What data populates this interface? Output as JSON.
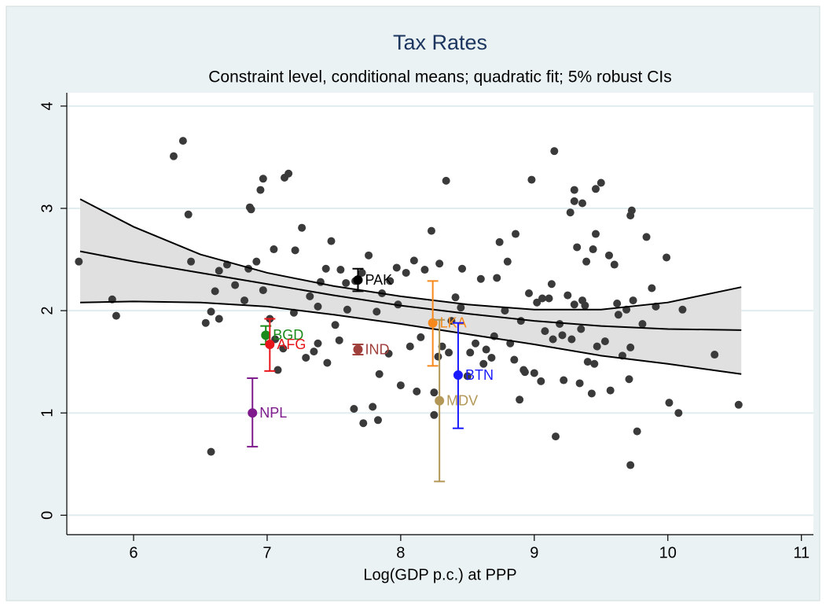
{
  "chart_data": {
    "type": "scatter",
    "title": "Tax Rates",
    "subtitle": "Constraint level, conditional means; quadratic fit; 5% robust CIs",
    "x_label": "Log(GDP p.c.) at PPP",
    "xlim": [
      5.5,
      11.09
    ],
    "ylim": [
      -0.19,
      4.13
    ],
    "xticks": [
      6,
      7,
      8,
      9,
      10,
      11
    ],
    "yticks": [
      0,
      1,
      2,
      3,
      4
    ],
    "grid": true,
    "points": {
      "color": "#3a3a3a",
      "x": [
        5.59,
        5.84,
        5.87,
        6.3,
        6.37,
        6.41,
        6.43,
        6.54,
        6.58,
        6.58,
        6.61,
        6.64,
        6.64,
        6.7,
        6.76,
        6.83,
        6.86,
        6.88,
        6.87,
        6.92,
        6.95,
        6.97,
        6.97,
        7.02,
        7.05,
        7.06,
        7.08,
        7.13,
        7.16,
        7.21,
        7.26,
        7.29,
        7.32,
        7.38,
        7.38,
        7.44,
        7.48,
        7.51,
        7.54,
        7.59,
        7.65,
        7.71,
        7.72,
        7.76,
        7.82,
        7.84,
        7.86,
        7.91,
        7.97,
        8.0,
        8.04,
        8.07,
        8.12,
        8.18,
        8.23,
        8.25,
        8.25,
        8.29,
        8.34,
        8.36,
        8.41,
        8.46,
        8.52,
        8.56,
        8.62,
        8.68,
        8.72,
        8.74,
        8.8,
        8.82,
        8.86,
        8.89,
        8.93,
        8.98,
        9.02,
        9.06,
        9.11,
        9.15,
        9.16,
        9.19,
        9.22,
        9.25,
        9.27,
        9.3,
        9.32,
        9.36,
        9.38,
        9.39,
        9.43,
        9.44,
        9.46,
        9.5,
        9.56,
        9.6,
        9.63,
        9.66,
        9.69,
        9.71,
        9.77,
        9.72,
        9.81,
        9.84,
        9.88,
        9.91,
        9.99,
        10.01,
        10.08,
        10.11,
        10.35,
        10.53,
        8.1,
        8.15,
        8.5,
        8.6,
        8.7,
        8.78,
        8.85,
        8.9,
        9.0,
        9.08,
        9.13,
        9.21,
        9.28,
        9.34,
        9.4,
        9.47,
        9.53,
        9.57,
        9.62,
        9.72,
        9.74,
        7.4,
        7.55,
        7.66,
        7.92,
        7.98,
        8.28,
        8.38,
        8.45,
        8.64,
        8.92,
        8.96,
        7.12,
        7.2,
        7.45,
        7.35,
        7.6,
        7.79,
        7.83,
        8.31,
        9.05,
        9.14,
        9.45,
        9.35,
        9.3,
        9.73,
        9.72,
        9.46,
        9.3,
        9.36
      ],
      "y": [
        2.48,
        2.11,
        1.95,
        3.51,
        3.66,
        2.94,
        2.48,
        1.88,
        0.62,
        1.99,
        2.19,
        1.92,
        2.39,
        2.45,
        2.25,
        2.1,
        2.41,
        2.99,
        3.01,
        2.48,
        3.18,
        3.29,
        2.2,
        1.92,
        2.6,
        1.72,
        1.42,
        3.3,
        3.34,
        2.59,
        2.81,
        1.54,
        2.14,
        2.04,
        1.68,
        2.41,
        2.68,
        1.86,
        1.71,
        2.27,
        1.04,
        2.37,
        0.9,
        2.54,
        1.99,
        1.38,
        2.17,
        1.58,
        2.42,
        1.27,
        2.37,
        1.65,
        1.21,
        2.4,
        2.78,
        0.98,
        1.2,
        2.46,
        3.27,
        1.59,
        2.13,
        2.41,
        1.59,
        1.68,
        1.48,
        1.54,
        2.32,
        2.67,
        2.48,
        1.68,
        2.75,
        1.13,
        1.4,
        3.28,
        2.08,
        2.12,
        2.12,
        3.56,
        0.77,
        1.87,
        1.32,
        2.15,
        2.96,
        2.06,
        2.62,
        2.1,
        2.05,
        2.48,
        1.19,
        2.6,
        2.75,
        3.25,
        2.54,
        2.45,
        1.96,
        1.56,
        2.01,
        1.33,
        0.82,
        0.49,
        1.87,
        2.72,
        2.22,
        2.04,
        2.52,
        1.1,
        1.0,
        2.01,
        1.57,
        1.08,
        2.49,
        1.74,
        1.36,
        2.31,
        1.75,
        2.0,
        1.52,
        1.9,
        1.39,
        1.8,
        2.26,
        1.76,
        1.72,
        1.29,
        1.5,
        1.65,
        1.7,
        1.22,
        2.07,
        1.64,
        2.1,
        2.28,
        2.4,
        2.29,
        2.29,
        2.06,
        1.55,
        1.9,
        2.03,
        1.62,
        1.42,
        2.17,
        1.63,
        1.98,
        1.49,
        1.6,
        2.01,
        1.06,
        0.93,
        1.65,
        1.31,
        1.72,
        1.48,
        1.82,
        3.07,
        2.98,
        2.93,
        3.19,
        3.18,
        3.05
      ]
    },
    "fit": {
      "color": "#000000",
      "band_color": "#e0e0e0",
      "x": [
        5.6,
        6,
        6.5,
        7,
        7.5,
        8,
        8.5,
        9,
        9.5,
        10,
        10.55
      ],
      "y": [
        2.58,
        2.48,
        2.37,
        2.26,
        2.15,
        2.05,
        1.97,
        1.9,
        1.85,
        1.82,
        1.81
      ],
      "upper": [
        3.09,
        2.82,
        2.55,
        2.37,
        2.24,
        2.14,
        2.06,
        2.01,
        2.01,
        2.08,
        2.23
      ],
      "lower": [
        2.08,
        2.09,
        2.08,
        2.04,
        1.96,
        1.87,
        1.77,
        1.67,
        1.56,
        1.48,
        1.38
      ]
    },
    "highlights": [
      {
        "label": "PAK",
        "color": "#000000",
        "x": 7.68,
        "y": 2.3,
        "ci_low": 2.19,
        "ci_high": 2.41
      },
      {
        "label": "BGD",
        "color": "#1a8a1a",
        "x": 6.99,
        "y": 1.76,
        "ci_low": 1.67,
        "ci_high": 1.85
      },
      {
        "label": "AFG",
        "color": "#e8161b",
        "x": 7.02,
        "y": 1.67,
        "ci_low": 1.41,
        "ci_high": 1.92
      },
      {
        "label": "IND",
        "color": "#a0403c",
        "x": 7.68,
        "y": 1.62,
        "ci_low": 1.57,
        "ci_high": 1.67
      },
      {
        "label": "LKA",
        "color": "#f7891c",
        "x": 8.24,
        "y": 1.88,
        "ci_low": 1.46,
        "ci_high": 2.29
      },
      {
        "label": "BTN",
        "color": "#1a1aff",
        "x": 8.43,
        "y": 1.37,
        "ci_low": 0.85,
        "ci_high": 1.88
      },
      {
        "label": "MDV",
        "color": "#b39756",
        "x": 8.29,
        "y": 1.12,
        "ci_low": 0.33,
        "ci_high": 1.91
      },
      {
        "label": "NPL",
        "color": "#7e1a8c",
        "x": 6.89,
        "y": 1.0,
        "ci_low": 0.67,
        "ci_high": 1.34
      }
    ]
  }
}
